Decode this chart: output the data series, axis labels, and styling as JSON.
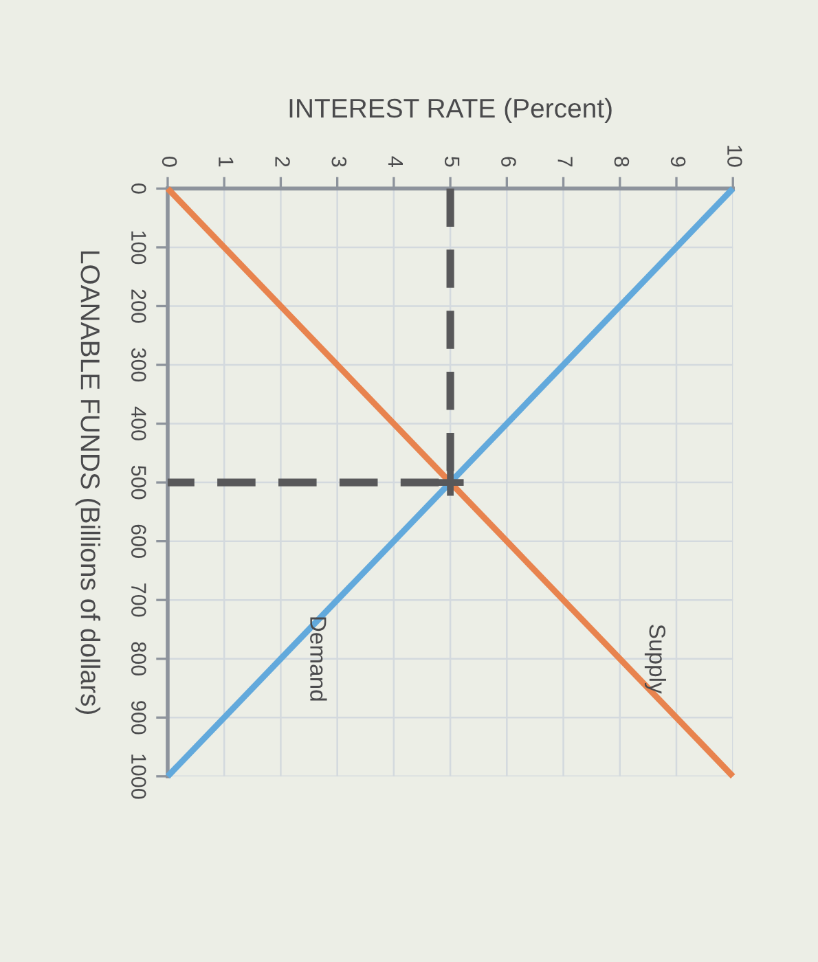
{
  "chart_data": {
    "type": "line",
    "xlabel": "INTEREST RATE (Percent)",
    "ylabel": "LOANABLE FUNDS (Billions of dollars)",
    "xlim": [
      0,
      10
    ],
    "xticks": [
      0,
      1,
      2,
      3,
      4,
      5,
      6,
      7,
      8,
      9,
      10
    ],
    "ylim": [
      1000,
      0
    ],
    "yticks": [
      0,
      100,
      200,
      300,
      400,
      500,
      600,
      700,
      800,
      900,
      1000
    ],
    "grid": true,
    "series": [
      {
        "name": "Supply",
        "color": "#e8834e",
        "x": [
          0,
          10
        ],
        "values": [
          0,
          1000
        ]
      },
      {
        "name": "Demand",
        "color": "#62a9dc",
        "x": [
          0,
          10
        ],
        "values": [
          1000,
          0
        ]
      },
      {
        "color": "#58585a",
        "x": [
          5,
          5,
          0
        ],
        "values": [
          0,
          500,
          500
        ],
        "line_style": "dashed"
      },
      {
        "type": "scatter",
        "color": "#58585a",
        "x": [
          5
        ],
        "values": [
          500
        ],
        "marker": "cross"
      }
    ]
  }
}
